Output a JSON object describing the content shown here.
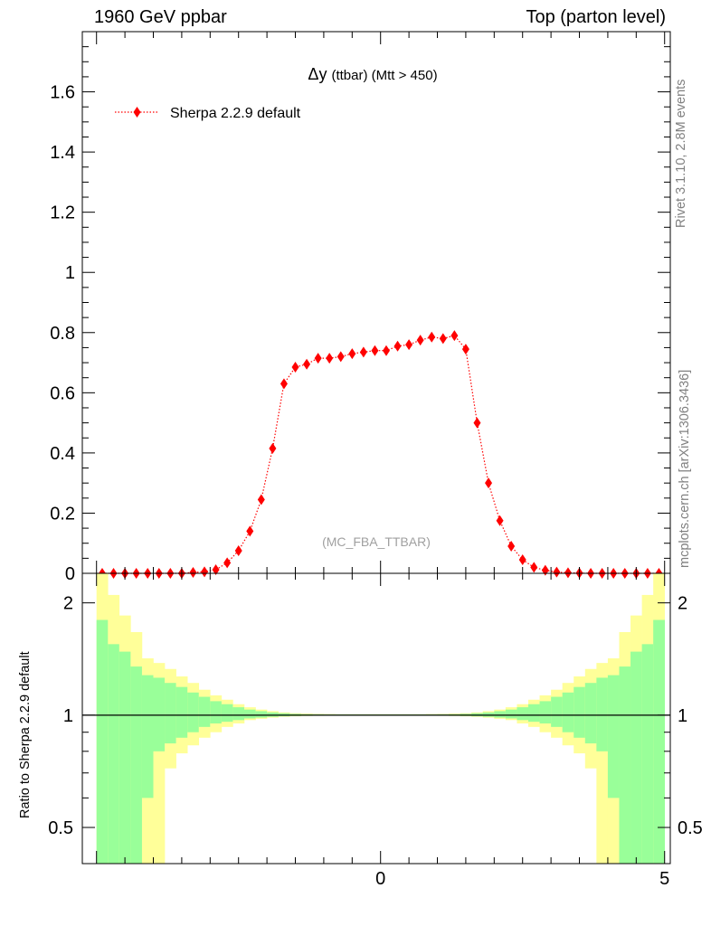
{
  "header": {
    "left": "1960 GeV ppbar",
    "right": "Top (parton level)"
  },
  "side_labels": {
    "rivet": "Rivet 3.1.10,  2.8M events",
    "mcplots": "mcplots.cern.ch [arXiv:1306.3436]"
  },
  "chart_data": [
    {
      "type": "line",
      "title_main": "Δy",
      "title_sub": "(ttbar) (Mtt > 450)",
      "watermark": "(MC_FBA_TTBAR)",
      "legend_position": "top-left",
      "xlim": [
        -5.25,
        5.1
      ],
      "ylim": [
        0,
        1.8
      ],
      "yticks": [
        0,
        0.2,
        0.4,
        0.6,
        0.8,
        1,
        1.2,
        1.4,
        1.6
      ],
      "ytick_labels": [
        "0",
        "0.2",
        "0.4",
        "0.6",
        "0.8",
        "1",
        "1.2",
        "1.4",
        "1.6"
      ],
      "series": [
        {
          "name": "Sherpa 2.2.9 default",
          "color": "#ff0000",
          "marker": "diamond",
          "line_style": "dotted",
          "x": [
            -4.9,
            -4.7,
            -4.5,
            -4.3,
            -4.1,
            -3.9,
            -3.7,
            -3.5,
            -3.3,
            -3.1,
            -2.9,
            -2.7,
            -2.5,
            -2.3,
            -2.1,
            -1.9,
            -1.7,
            -1.5,
            -1.3,
            -1.1,
            -0.9,
            -0.7,
            -0.5,
            -0.3,
            -0.1,
            0.1,
            0.3,
            0.5,
            0.7,
            0.9,
            1.1,
            1.3,
            1.5,
            1.7,
            1.9,
            2.1,
            2.3,
            2.5,
            2.7,
            2.9,
            3.1,
            3.3,
            3.5,
            3.7,
            3.9,
            4.1,
            4.3,
            4.5,
            4.7,
            4.9
          ],
          "y": [
            0,
            0,
            0,
            0,
            0,
            0,
            0,
            0,
            0.003,
            0.005,
            0.012,
            0.035,
            0.075,
            0.14,
            0.245,
            0.415,
            0.63,
            0.685,
            0.695,
            0.715,
            0.715,
            0.72,
            0.73,
            0.735,
            0.74,
            0.74,
            0.755,
            0.76,
            0.775,
            0.785,
            0.78,
            0.79,
            0.745,
            0.5,
            0.3,
            0.175,
            0.09,
            0.045,
            0.02,
            0.01,
            0.004,
            0.002,
            0.001,
            0,
            0,
            0,
            0,
            0,
            0,
            0
          ]
        }
      ]
    },
    {
      "type": "area",
      "ylabel": "Ratio to Sherpa 2.2.9 default",
      "scale": "log",
      "ylim": [
        0.4,
        2.4
      ],
      "yticks": [
        0.5,
        1,
        2
      ],
      "ytick_labels": [
        "0.5",
        "1",
        "2"
      ],
      "xticks": [
        0,
        5
      ],
      "xtick_labels": [
        "0",
        "5"
      ],
      "colors": {
        "inner": "#99ff99",
        "outer": "#ffff99",
        "reference": "#000000"
      },
      "bins": [
        -5.0,
        -4.8,
        -4.6,
        -4.4,
        -4.2,
        -4.0,
        -3.8,
        -3.6,
        -3.4,
        -3.2,
        -3.0,
        -2.8,
        -2.6,
        -2.4,
        -2.2,
        -2.0,
        -1.8,
        -1.6,
        -1.4,
        -1.2,
        -1.0,
        -0.8,
        -0.6,
        -0.4,
        -0.2,
        0.0,
        0.2,
        0.4,
        0.6,
        0.8,
        1.0,
        1.2,
        1.4,
        1.6,
        1.8,
        2.0,
        2.2,
        2.4,
        2.6,
        2.8,
        3.0,
        3.2,
        3.4,
        3.6,
        3.8,
        4.0,
        4.2,
        4.4,
        4.6,
        4.8,
        5.0
      ],
      "outer_upper": [
        2.4,
        2.1,
        1.85,
        1.67,
        1.42,
        1.38,
        1.33,
        1.27,
        1.22,
        1.17,
        1.13,
        1.1,
        1.07,
        1.05,
        1.035,
        1.025,
        1.017,
        1.012,
        1.01,
        1.008,
        1.007,
        1.006,
        1.006,
        1.006,
        1.006,
        1.006,
        1.006,
        1.006,
        1.006,
        1.007,
        1.008,
        1.01,
        1.012,
        1.017,
        1.025,
        1.035,
        1.05,
        1.07,
        1.1,
        1.13,
        1.17,
        1.22,
        1.27,
        1.33,
        1.38,
        1.42,
        1.67,
        1.85,
        2.1,
        2.4
      ],
      "inner_upper": [
        1.8,
        1.55,
        1.48,
        1.35,
        1.28,
        1.26,
        1.22,
        1.19,
        1.15,
        1.12,
        1.09,
        1.07,
        1.05,
        1.035,
        1.025,
        1.017,
        1.012,
        1.008,
        1.006,
        1.005,
        1.004,
        1.004,
        1.004,
        1.004,
        1.004,
        1.004,
        1.004,
        1.004,
        1.004,
        1.004,
        1.005,
        1.006,
        1.008,
        1.012,
        1.017,
        1.025,
        1.035,
        1.05,
        1.07,
        1.09,
        1.12,
        1.15,
        1.19,
        1.22,
        1.26,
        1.28,
        1.35,
        1.48,
        1.55,
        1.8
      ],
      "inner_lower": [
        0.4,
        0.4,
        0.4,
        0.4,
        0.6,
        0.8,
        0.84,
        0.87,
        0.9,
        0.93,
        0.95,
        0.96,
        0.97,
        0.98,
        0.985,
        0.99,
        0.993,
        0.995,
        0.996,
        0.997,
        0.997,
        0.998,
        0.998,
        0.998,
        0.998,
        0.998,
        0.998,
        0.998,
        0.998,
        0.997,
        0.997,
        0.996,
        0.995,
        0.993,
        0.99,
        0.985,
        0.98,
        0.97,
        0.96,
        0.95,
        0.93,
        0.9,
        0.87,
        0.84,
        0.8,
        0.6,
        0.4,
        0.4,
        0.4,
        0.4
      ],
      "outer_lower": [
        0.4,
        0.4,
        0.4,
        0.4,
        0.4,
        0.4,
        0.72,
        0.79,
        0.83,
        0.87,
        0.9,
        0.93,
        0.95,
        0.97,
        0.978,
        0.985,
        0.99,
        0.993,
        0.995,
        0.996,
        0.997,
        0.997,
        0.997,
        0.997,
        0.997,
        0.997,
        0.997,
        0.997,
        0.997,
        0.997,
        0.996,
        0.995,
        0.993,
        0.99,
        0.985,
        0.978,
        0.97,
        0.95,
        0.93,
        0.9,
        0.87,
        0.83,
        0.79,
        0.72,
        0.4,
        0.4,
        0.4,
        0.4,
        0.4,
        0.4
      ]
    }
  ]
}
